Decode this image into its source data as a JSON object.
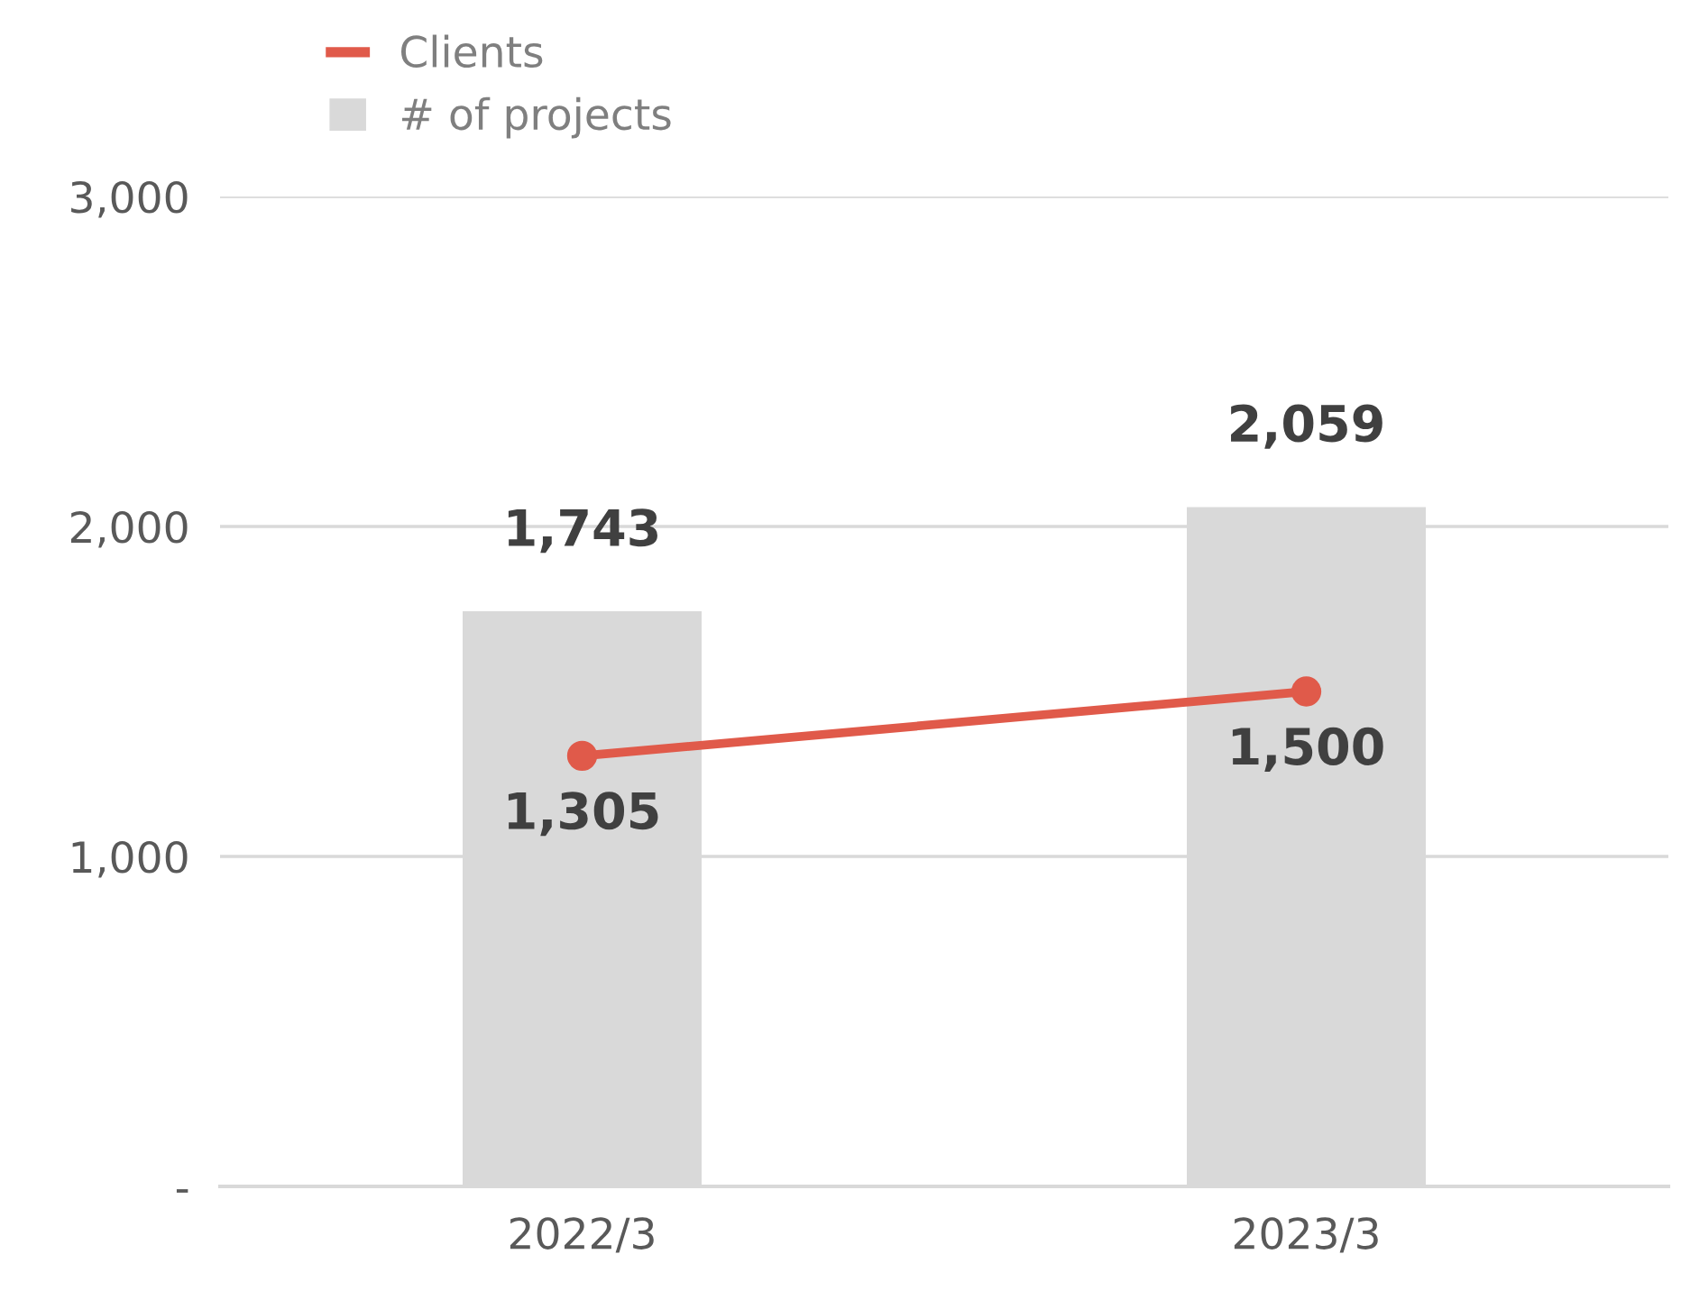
{
  "chart_data": {
    "type": "bar",
    "categories": [
      "2022/3",
      "2023/3"
    ],
    "series": [
      {
        "name": "Clients",
        "type": "line",
        "color": "#e05a4a",
        "values": [
          1305,
          1500
        ],
        "value_labels": [
          "1,305",
          "1,500"
        ]
      },
      {
        "name": "# of projects",
        "color": "#d9d9d9",
        "values": [
          1743,
          2059
        ],
        "value_labels": [
          "1,743",
          "2,059"
        ]
      }
    ],
    "ylim": [
      0,
      3000
    ],
    "yticks": [
      {
        "value": 0,
        "label": "-"
      },
      {
        "value": 1000,
        "label": "1,000"
      },
      {
        "value": 2000,
        "label": "2,000"
      },
      {
        "value": 3000,
        "label": "3,000"
      }
    ],
    "grid": "y",
    "legend": "top left",
    "marker": "circle"
  }
}
